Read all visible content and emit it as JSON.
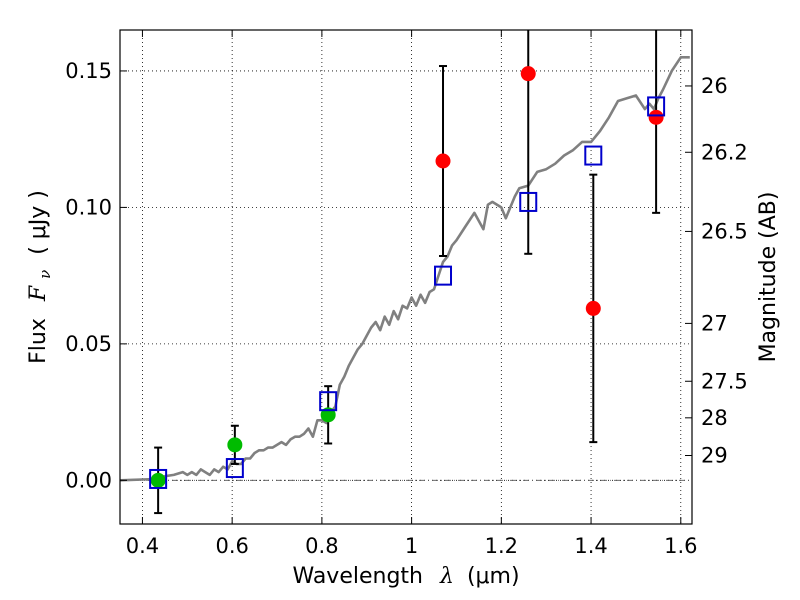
{
  "chart_data": {
    "type": "scatter",
    "title": "",
    "xlabel_prefix": "Wavelength",
    "xlabel_symbol": "λ",
    "xlabel_unit": "(μm)",
    "ylabel_prefix": "Flux",
    "ylabel_symbol": "F",
    "ylabel_subscript": "ν",
    "ylabel_unit": "( μJy )",
    "y2label": "Magnitude (AB)",
    "xlim": [
      0.35,
      1.625
    ],
    "ylim": [
      -0.016,
      0.165
    ],
    "grid": true,
    "x_ticks": [
      0.4,
      0.6,
      0.8,
      1.0,
      1.2,
      1.4,
      1.6
    ],
    "x_tick_labels": [
      "0.4",
      "0.6",
      "0.8",
      "1",
      "1.2",
      "1.4",
      "1.6"
    ],
    "y_ticks": [
      0.0,
      0.05,
      0.1,
      0.15
    ],
    "y_tick_labels": [
      "0.00",
      "0.05",
      "0.10",
      "0.15"
    ],
    "mag_ticks": [
      {
        "label": "26",
        "flux": 0.1445
      },
      {
        "label": "26.2",
        "flux": 0.1202
      },
      {
        "label": "26.5",
        "flux": 0.0912
      },
      {
        "label": "27",
        "flux": 0.0575
      },
      {
        "label": "27.5",
        "flux": 0.0363
      },
      {
        "label": "28",
        "flux": 0.0229
      },
      {
        "label": "29",
        "flux": 0.0091
      }
    ],
    "colors": {
      "model": "#808080",
      "detections": "#00bb00",
      "upper": "#ff0000",
      "model_boxes": "#0000cc",
      "errorbar": "#000000",
      "zero_line": "#555555"
    },
    "series": [
      {
        "role": "model-spectrum",
        "x": [
          0.35,
          0.43,
          0.45,
          0.47,
          0.49,
          0.5,
          0.51,
          0.52,
          0.53,
          0.54,
          0.55,
          0.56,
          0.57,
          0.58,
          0.59,
          0.6,
          0.61,
          0.62,
          0.63,
          0.64,
          0.65,
          0.66,
          0.67,
          0.68,
          0.69,
          0.7,
          0.71,
          0.72,
          0.73,
          0.74,
          0.75,
          0.76,
          0.77,
          0.78,
          0.79,
          0.8,
          0.81,
          0.82,
          0.83,
          0.84,
          0.85,
          0.86,
          0.87,
          0.88,
          0.89,
          0.9,
          0.91,
          0.92,
          0.93,
          0.94,
          0.95,
          0.96,
          0.97,
          0.98,
          0.99,
          1.0,
          1.01,
          1.02,
          1.03,
          1.04,
          1.05,
          1.06,
          1.07,
          1.08,
          1.09,
          1.1,
          1.12,
          1.14,
          1.16,
          1.17,
          1.18,
          1.2,
          1.21,
          1.22,
          1.23,
          1.24,
          1.26,
          1.28,
          1.3,
          1.32,
          1.34,
          1.36,
          1.38,
          1.4,
          1.42,
          1.44,
          1.46,
          1.48,
          1.5,
          1.52,
          1.53,
          1.54,
          1.55,
          1.56,
          1.58,
          1.6,
          1.62
        ],
        "y": [
          0.0,
          0.0005,
          0.0015,
          0.002,
          0.003,
          0.002,
          0.003,
          0.002,
          0.004,
          0.003,
          0.002,
          0.004,
          0.003,
          0.005,
          0.004,
          0.007,
          0.006,
          0.006,
          0.008,
          0.008,
          0.01,
          0.011,
          0.011,
          0.012,
          0.012,
          0.013,
          0.014,
          0.013,
          0.015,
          0.016,
          0.016,
          0.017,
          0.019,
          0.016,
          0.022,
          0.022,
          0.021,
          0.025,
          0.027,
          0.035,
          0.038,
          0.042,
          0.045,
          0.048,
          0.05,
          0.053,
          0.056,
          0.058,
          0.055,
          0.06,
          0.057,
          0.062,
          0.059,
          0.064,
          0.063,
          0.067,
          0.064,
          0.068,
          0.065,
          0.069,
          0.07,
          0.075,
          0.08,
          0.082,
          0.086,
          0.088,
          0.093,
          0.098,
          0.092,
          0.101,
          0.102,
          0.1,
          0.096,
          0.1,
          0.104,
          0.107,
          0.108,
          0.113,
          0.114,
          0.116,
          0.119,
          0.121,
          0.124,
          0.124,
          0.128,
          0.133,
          0.139,
          0.14,
          0.141,
          0.136,
          0.138,
          0.136,
          0.14,
          0.143,
          0.15,
          0.155,
          0.155
        ]
      },
      {
        "role": "model-photometry",
        "x": [
          0.435,
          0.606,
          0.814,
          1.07,
          1.26,
          1.405,
          1.545
        ],
        "y": [
          0.0005,
          0.0045,
          0.029,
          0.075,
          0.102,
          0.119,
          0.137
        ]
      },
      {
        "role": "detections",
        "x": [
          0.435,
          0.606,
          0.814
        ],
        "y": [
          0.0,
          0.013,
          0.024
        ],
        "yerr": [
          0.012,
          0.007,
          0.0105
        ]
      },
      {
        "role": "low-significance",
        "x": [
          1.07,
          1.26,
          1.405,
          1.545
        ],
        "y": [
          0.117,
          0.149,
          0.063,
          0.133
        ],
        "yerr": [
          0.0348,
          0.066,
          0.049,
          0.035
        ]
      }
    ]
  }
}
